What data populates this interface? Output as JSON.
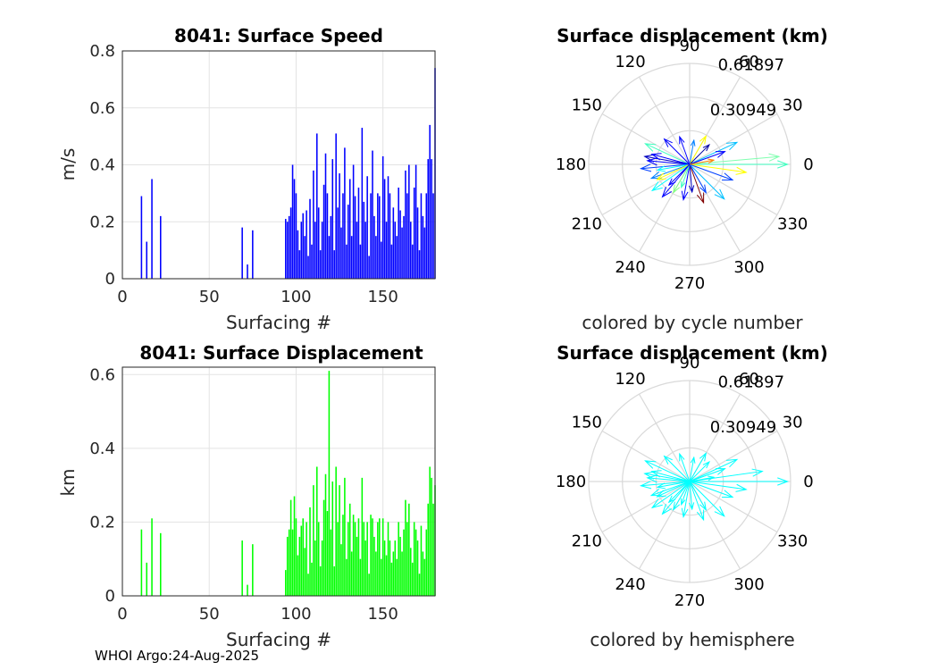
{
  "footer": "WHOI Argo:24-Aug-2025",
  "chart_data": [
    {
      "type": "bar",
      "title": "8041: Surface Speed",
      "xlabel": "Surfacing #",
      "ylabel": "m/s",
      "color": "#0000ff",
      "xlim": [
        0,
        180
      ],
      "ylim": [
        0,
        0.8
      ],
      "xticks": [
        0,
        50,
        100,
        150
      ],
      "yticks": [
        0,
        0.2,
        0.4,
        0.6,
        0.8
      ],
      "ytick_labels": [
        "0",
        "0.2",
        "0.4",
        "0.6",
        "0.8"
      ],
      "x": [
        11,
        14,
        17,
        22,
        69,
        72,
        75,
        94,
        95,
        96,
        97,
        98,
        99,
        100,
        101,
        102,
        103,
        104,
        105,
        106,
        107,
        108,
        109,
        110,
        111,
        112,
        113,
        114,
        115,
        116,
        117,
        118,
        119,
        120,
        121,
        122,
        123,
        124,
        125,
        126,
        127,
        128,
        129,
        130,
        131,
        132,
        133,
        134,
        135,
        136,
        137,
        138,
        139,
        140,
        141,
        142,
        143,
        144,
        145,
        146,
        147,
        148,
        149,
        150,
        151,
        152,
        153,
        154,
        155,
        156,
        157,
        158,
        159,
        160,
        161,
        162,
        163,
        164,
        165,
        166,
        167,
        168,
        169,
        170,
        171,
        172,
        173,
        174,
        175,
        176,
        177,
        178,
        179,
        180
      ],
      "values": [
        0.29,
        0.13,
        0.35,
        0.22,
        0.18,
        0.05,
        0.17,
        0.21,
        0.2,
        0.22,
        0.25,
        0.4,
        0.35,
        0.3,
        0.17,
        0.1,
        0.2,
        0.23,
        0.15,
        0.24,
        0.08,
        0.28,
        0.12,
        0.38,
        0.2,
        0.51,
        0.25,
        0.1,
        0.2,
        0.33,
        0.44,
        0.3,
        0.15,
        0.22,
        0.42,
        0.1,
        0.51,
        0.25,
        0.37,
        0.18,
        0.3,
        0.46,
        0.12,
        0.26,
        0.35,
        0.15,
        0.4,
        0.29,
        0.2,
        0.32,
        0.12,
        0.53,
        0.27,
        0.2,
        0.36,
        0.08,
        0.3,
        0.45,
        0.22,
        0.15,
        0.3,
        0.29,
        0.13,
        0.43,
        0.35,
        0.2,
        0.36,
        0.3,
        0.12,
        0.25,
        0.2,
        0.15,
        0.32,
        0.24,
        0.18,
        0.22,
        0.38,
        0.3,
        0.4,
        0.2,
        0.12,
        0.32,
        0.4,
        0.25,
        0.1,
        0.3,
        0.22,
        0.18,
        0.3,
        0.42,
        0.54,
        0.42,
        0.3,
        0.74
      ]
    },
    {
      "type": "polar_arrows",
      "title": "Surface displacement (km)",
      "caption": "colored by cycle number",
      "rmax": 0.61897,
      "ring_labels": [
        "0.30949",
        "0.61897"
      ],
      "angle_labels": [
        "0",
        "30",
        "60",
        "90",
        "120",
        "150",
        "180",
        "210",
        "240",
        "270",
        "300",
        "330"
      ],
      "arrows": [
        {
          "angle": 0,
          "r": 0.6,
          "color": "#40ffc0"
        },
        {
          "angle": 5,
          "r": 0.55,
          "color": "#80ffb0"
        },
        {
          "angle": 352,
          "r": 0.35,
          "color": "#ffff00"
        },
        {
          "angle": 25,
          "r": 0.32,
          "color": "#00c0ff"
        },
        {
          "angle": 155,
          "r": 0.3,
          "color": "#40ffc0"
        },
        {
          "angle": 170,
          "r": 0.28,
          "color": "#0000c0"
        },
        {
          "angle": 185,
          "r": 0.3,
          "color": "#0040ff"
        },
        {
          "angle": 200,
          "r": 0.25,
          "color": "#0080ff"
        },
        {
          "angle": 215,
          "r": 0.28,
          "color": "#00ffff"
        },
        {
          "angle": 240,
          "r": 0.2,
          "color": "#80ff80"
        },
        {
          "angle": 260,
          "r": 0.22,
          "color": "#0000ff"
        },
        {
          "angle": 290,
          "r": 0.25,
          "color": "#800000"
        },
        {
          "angle": 315,
          "r": 0.3,
          "color": "#00c0ff"
        },
        {
          "angle": 340,
          "r": 0.28,
          "color": "#0040ff"
        },
        {
          "angle": 110,
          "r": 0.18,
          "color": "#0000ff"
        },
        {
          "angle": 80,
          "r": 0.15,
          "color": "#0080ff"
        },
        {
          "angle": 60,
          "r": 0.2,
          "color": "#ffff00"
        },
        {
          "angle": 45,
          "r": 0.17,
          "color": "#0000a0"
        },
        {
          "angle": 135,
          "r": 0.22,
          "color": "#0000ff"
        },
        {
          "angle": 190,
          "r": 0.2,
          "color": "#00ffff"
        },
        {
          "angle": 230,
          "r": 0.26,
          "color": "#0000ff"
        },
        {
          "angle": 250,
          "r": 0.15,
          "color": "#40ffc0"
        },
        {
          "angle": 275,
          "r": 0.17,
          "color": "#0000c0"
        },
        {
          "angle": 300,
          "r": 0.2,
          "color": "#0040ff"
        },
        {
          "angle": 20,
          "r": 0.23,
          "color": "#0000ff"
        },
        {
          "angle": 165,
          "r": 0.24,
          "color": "#0000ff"
        },
        {
          "angle": 205,
          "r": 0.22,
          "color": "#ffff00"
        },
        {
          "angle": 225,
          "r": 0.18,
          "color": "#0000ff"
        },
        {
          "angle": 10,
          "r": 0.15,
          "color": "#ff8000"
        },
        {
          "angle": 175,
          "r": 0.26,
          "color": "#0000ff"
        }
      ]
    },
    {
      "type": "bar",
      "title": "8041: Surface Displacement",
      "xlabel": "Surfacing #",
      "ylabel": "km",
      "color": "#00ff00",
      "xlim": [
        0,
        180
      ],
      "ylim": [
        0,
        0.62
      ],
      "xticks": [
        0,
        50,
        100,
        150
      ],
      "yticks": [
        0,
        0.2,
        0.4,
        0.6
      ],
      "ytick_labels": [
        "0",
        "0.2",
        "0.4",
        "0.6"
      ],
      "x": [
        11,
        14,
        17,
        22,
        69,
        72,
        75,
        94,
        95,
        96,
        97,
        98,
        99,
        100,
        101,
        102,
        103,
        104,
        105,
        106,
        107,
        108,
        109,
        110,
        111,
        112,
        113,
        114,
        115,
        116,
        117,
        118,
        119,
        120,
        121,
        122,
        123,
        124,
        125,
        126,
        127,
        128,
        129,
        130,
        131,
        132,
        133,
        134,
        135,
        136,
        137,
        138,
        139,
        140,
        141,
        142,
        143,
        144,
        145,
        146,
        147,
        148,
        149,
        150,
        151,
        152,
        153,
        154,
        155,
        156,
        157,
        158,
        159,
        160,
        161,
        162,
        163,
        164,
        165,
        166,
        167,
        168,
        169,
        170,
        171,
        172,
        173,
        174,
        175,
        176,
        177,
        178,
        179,
        180
      ],
      "values": [
        0.18,
        0.09,
        0.21,
        0.17,
        0.15,
        0.03,
        0.14,
        0.07,
        0.16,
        0.18,
        0.26,
        0.18,
        0.27,
        0.21,
        0.11,
        0.16,
        0.19,
        0.21,
        0.13,
        0.2,
        0.06,
        0.24,
        0.09,
        0.3,
        0.15,
        0.35,
        0.2,
        0.08,
        0.15,
        0.26,
        0.33,
        0.23,
        0.61,
        0.18,
        0.31,
        0.08,
        0.35,
        0.2,
        0.3,
        0.14,
        0.22,
        0.32,
        0.1,
        0.2,
        0.25,
        0.12,
        0.22,
        0.2,
        0.16,
        0.21,
        0.1,
        0.32,
        0.2,
        0.15,
        0.2,
        0.06,
        0.22,
        0.21,
        0.16,
        0.12,
        0.2,
        0.21,
        0.1,
        0.21,
        0.15,
        0.11,
        0.2,
        0.15,
        0.09,
        0.12,
        0.15,
        0.1,
        0.2,
        0.16,
        0.12,
        0.18,
        0.26,
        0.2,
        0.25,
        0.13,
        0.09,
        0.2,
        0.18,
        0.15,
        0.06,
        0.19,
        0.12,
        0.1,
        0.18,
        0.25,
        0.35,
        0.32,
        0.25,
        0.3
      ]
    },
    {
      "type": "polar_arrows",
      "title": "Surface displacement (km)",
      "caption": "colored by hemisphere",
      "rmax": 0.61897,
      "ring_labels": [
        "0.30949",
        "0.61897"
      ],
      "angle_labels": [
        "0",
        "30",
        "60",
        "90",
        "120",
        "150",
        "180",
        "210",
        "240",
        "270",
        "300",
        "330"
      ],
      "arrows": [
        {
          "angle": 0,
          "r": 0.6,
          "color": "#00ffff"
        },
        {
          "angle": 8,
          "r": 0.45,
          "color": "#00ffff"
        },
        {
          "angle": 352,
          "r": 0.35,
          "color": "#00ffff"
        },
        {
          "angle": 25,
          "r": 0.32,
          "color": "#00ffff"
        },
        {
          "angle": 155,
          "r": 0.3,
          "color": "#00ffff"
        },
        {
          "angle": 170,
          "r": 0.28,
          "color": "#00ffff"
        },
        {
          "angle": 185,
          "r": 0.3,
          "color": "#00ffff"
        },
        {
          "angle": 200,
          "r": 0.25,
          "color": "#00ffff"
        },
        {
          "angle": 215,
          "r": 0.28,
          "color": "#00ffff"
        },
        {
          "angle": 240,
          "r": 0.2,
          "color": "#00ffff"
        },
        {
          "angle": 260,
          "r": 0.22,
          "color": "#00ffff"
        },
        {
          "angle": 290,
          "r": 0.25,
          "color": "#00ffff"
        },
        {
          "angle": 315,
          "r": 0.3,
          "color": "#00ffff"
        },
        {
          "angle": 340,
          "r": 0.28,
          "color": "#00ffff"
        },
        {
          "angle": 110,
          "r": 0.18,
          "color": "#00ffff"
        },
        {
          "angle": 80,
          "r": 0.15,
          "color": "#00ffff"
        },
        {
          "angle": 60,
          "r": 0.2,
          "color": "#00ffff"
        },
        {
          "angle": 45,
          "r": 0.17,
          "color": "#00ffff"
        },
        {
          "angle": 135,
          "r": 0.22,
          "color": "#00ffff"
        },
        {
          "angle": 190,
          "r": 0.2,
          "color": "#00ffff"
        },
        {
          "angle": 230,
          "r": 0.26,
          "color": "#00ffff"
        },
        {
          "angle": 250,
          "r": 0.15,
          "color": "#00ffff"
        },
        {
          "angle": 275,
          "r": 0.17,
          "color": "#00ffff"
        },
        {
          "angle": 300,
          "r": 0.2,
          "color": "#00ffff"
        },
        {
          "angle": 20,
          "r": 0.23,
          "color": "#00ffff"
        },
        {
          "angle": 165,
          "r": 0.24,
          "color": "#00ffff"
        },
        {
          "angle": 205,
          "r": 0.22,
          "color": "#00ffff"
        },
        {
          "angle": 225,
          "r": 0.18,
          "color": "#00ffff"
        },
        {
          "angle": 10,
          "r": 0.15,
          "color": "#00ffff"
        },
        {
          "angle": 175,
          "r": 0.26,
          "color": "#00ffff"
        }
      ]
    }
  ]
}
